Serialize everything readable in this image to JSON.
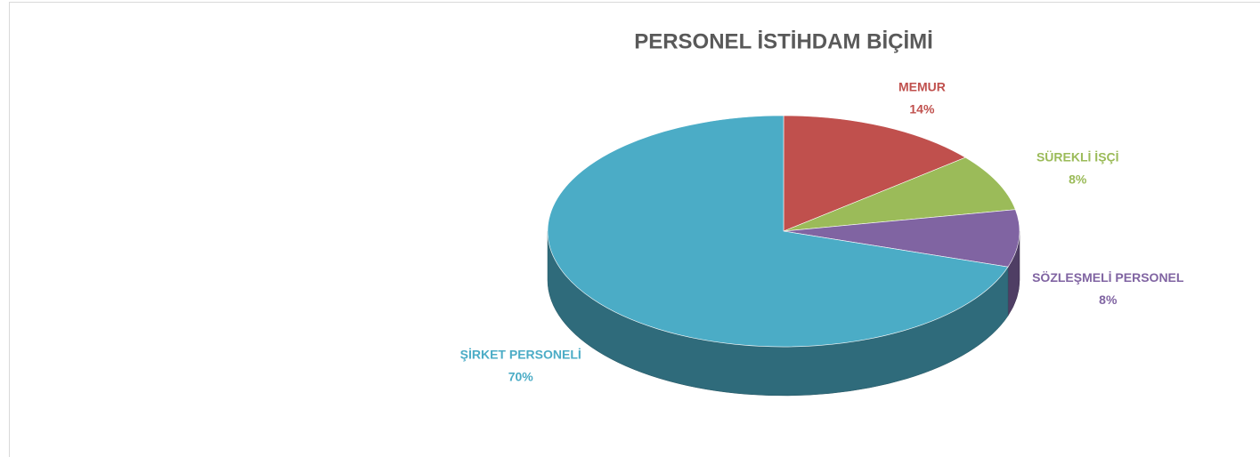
{
  "chart_data": {
    "type": "pie",
    "title": "PERSONEL İSTİHDAM BİÇİMİ",
    "categories": [
      "MEMUR",
      "SÜREKLİ İŞÇİ",
      "SÖZLEŞMELİ PERSONEL",
      "ŞİRKET PERSONELİ"
    ],
    "values": [
      14,
      8,
      8,
      70
    ],
    "value_labels": [
      "14%",
      "8%",
      "8%",
      "70%"
    ],
    "colors": [
      "#c0504d",
      "#9bbb59",
      "#8064a2",
      "#4bacc6"
    ]
  }
}
